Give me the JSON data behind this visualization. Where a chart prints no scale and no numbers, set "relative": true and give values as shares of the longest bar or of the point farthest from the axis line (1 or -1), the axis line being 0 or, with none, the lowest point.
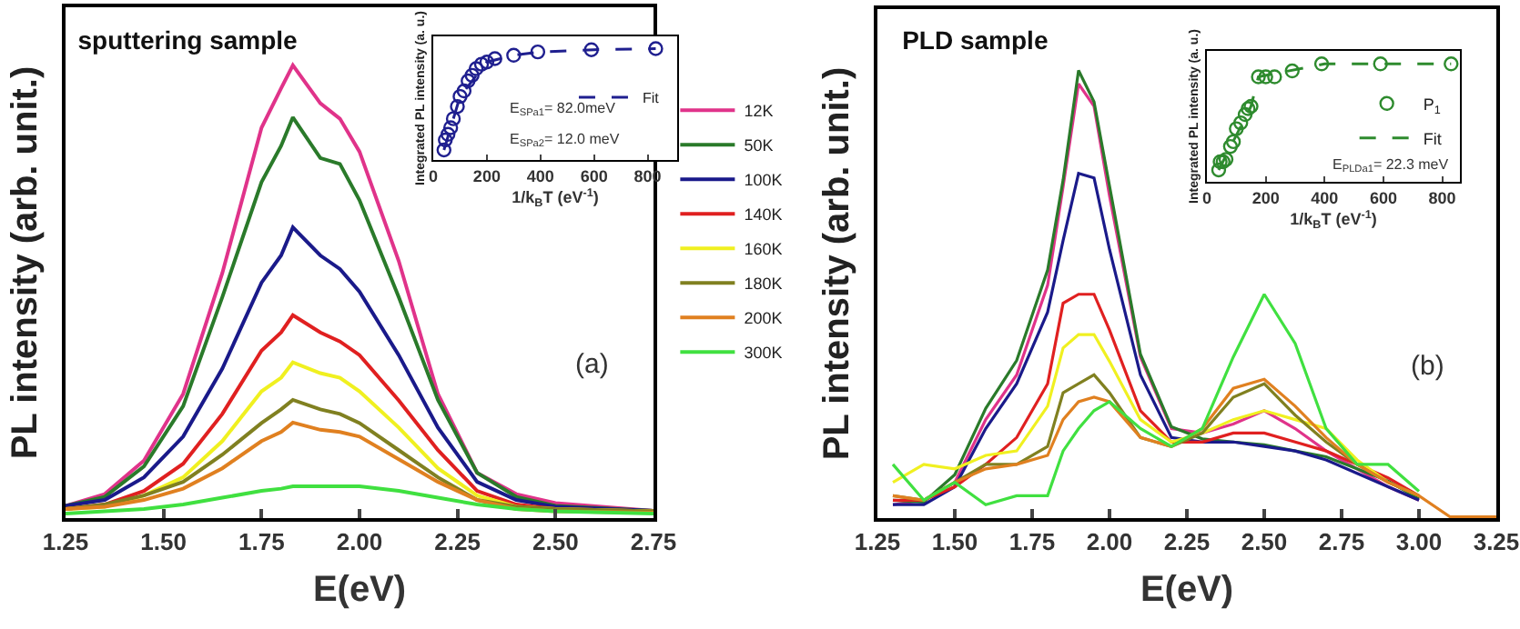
{
  "chart_data": [
    {
      "type": "line",
      "title": "sputtering sample",
      "xlabel": "E(eV)",
      "ylabel": "PL intensity (arb. unit.)",
      "annotations": [
        "(a)"
      ],
      "relative": true,
      "tick_labels": "x",
      "legend": "right",
      "grid": false,
      "x": [
        1.25,
        1.35,
        1.45,
        1.55,
        1.65,
        1.75,
        1.8,
        1.83,
        1.9,
        1.95,
        2.0,
        2.1,
        2.2,
        2.3,
        2.4,
        2.5,
        2.75
      ],
      "xlim": [
        1.25,
        2.75
      ],
      "xticks": [
        {
          "value": 1.25,
          "label": "1.25"
        },
        {
          "value": 1.5,
          "label": "1.50"
        },
        {
          "value": 1.75,
          "label": "1.75"
        },
        {
          "value": 2.0,
          "label": "2.00"
        },
        {
          "value": 2.25,
          "label": "2.25"
        },
        {
          "value": 2.5,
          "label": "2.50"
        },
        {
          "value": 2.75,
          "label": "2.75"
        }
      ],
      "series": [
        {
          "name": "12K",
          "color": "#e0338a",
          "values": [
            0.027,
            0.053,
            0.127,
            0.274,
            0.541,
            0.862,
            0.949,
            1,
            0.916,
            0.882,
            0.809,
            0.568,
            0.274,
            0.1,
            0.053,
            0.033,
            0.016
          ]
        },
        {
          "name": "50K",
          "color": "#2a7a2a",
          "values": [
            0.027,
            0.047,
            0.114,
            0.247,
            0.488,
            0.742,
            0.822,
            0.885,
            0.795,
            0.782,
            0.702,
            0.488,
            0.261,
            0.1,
            0.047,
            0.027,
            0.016
          ]
        },
        {
          "name": "100K",
          "color": "#1a1a8a",
          "values": [
            0.027,
            0.04,
            0.09,
            0.18,
            0.33,
            0.52,
            0.58,
            0.642,
            0.58,
            0.55,
            0.5,
            0.36,
            0.2,
            0.08,
            0.04,
            0.025,
            0.016
          ]
        },
        {
          "name": "140K",
          "color": "#e02020",
          "values": [
            0.02,
            0.03,
            0.06,
            0.12,
            0.23,
            0.37,
            0.41,
            0.448,
            0.41,
            0.39,
            0.36,
            0.26,
            0.15,
            0.06,
            0.03,
            0.02,
            0.015
          ]
        },
        {
          "name": "160K",
          "color": "#f0f020",
          "values": [
            0.02,
            0.025,
            0.05,
            0.09,
            0.17,
            0.28,
            0.31,
            0.344,
            0.32,
            0.31,
            0.28,
            0.2,
            0.11,
            0.05,
            0.025,
            0.02,
            0.015
          ]
        },
        {
          "name": "180K",
          "color": "#808020",
          "values": [
            0.02,
            0.03,
            0.05,
            0.08,
            0.14,
            0.21,
            0.24,
            0.261,
            0.24,
            0.23,
            0.21,
            0.15,
            0.09,
            0.04,
            0.025,
            0.02,
            0.015
          ]
        },
        {
          "name": "200K",
          "color": "#e08020",
          "values": [
            0.02,
            0.025,
            0.04,
            0.065,
            0.11,
            0.17,
            0.19,
            0.211,
            0.195,
            0.19,
            0.18,
            0.13,
            0.08,
            0.04,
            0.02,
            0.015,
            0.012
          ]
        },
        {
          "name": "300K",
          "color": "#40e040",
          "values": [
            0.01,
            0.015,
            0.02,
            0.03,
            0.045,
            0.06,
            0.065,
            0.07,
            0.07,
            0.07,
            0.07,
            0.06,
            0.045,
            0.03,
            0.02,
            0.015,
            0.01
          ]
        }
      ]
    },
    {
      "type": "scatter",
      "xlabel": "1/k$_{B}$T (eV$^{-1}$)",
      "ylabel": "Integrated PL intensity (a. u.)",
      "annotations": [
        "E$_{SPa1}$= 82.0meV",
        "E$_{SPa2}$= 12.0 meV"
      ],
      "relative": true,
      "tick_labels": "x",
      "legend": "right",
      "grid": false,
      "xlim": [
        0,
        910
      ],
      "xticks": [
        0,
        200,
        400,
        600,
        800
      ],
      "series": [
        {
          "color": "#1f1f8f",
          "marker": "circle",
          "x": [
            40,
            45,
            55,
            65,
            75,
            90,
            100,
            115,
            130,
            145,
            160,
            180,
            200,
            230,
            300,
            390,
            590,
            830
          ],
          "values": [
            0.09,
            0.18,
            0.23,
            0.29,
            0.37,
            0.48,
            0.57,
            0.62,
            0.71,
            0.76,
            0.82,
            0.86,
            0.88,
            0.91,
            0.94,
            0.97,
            0.99,
            1
          ]
        },
        {
          "name": "Fit",
          "type": "line",
          "line_style": "dashed",
          "color": "#1f1f8f",
          "x": [
            40,
            100,
            200,
            300,
            400,
            600,
            830
          ],
          "values": [
            0.09,
            0.57,
            0.88,
            0.94,
            0.97,
            0.99,
            1
          ]
        }
      ]
    },
    {
      "type": "line",
      "title": "PLD sample",
      "xlabel": "E(eV)",
      "ylabel": "PL intensity (arb. unit.)",
      "annotations": [
        "(b)"
      ],
      "relative": true,
      "tick_labels": "x",
      "grid": false,
      "x": [
        1.3,
        1.4,
        1.5,
        1.6,
        1.7,
        1.8,
        1.85,
        1.9,
        1.95,
        2.0,
        2.1,
        2.2,
        2.3,
        2.4,
        2.5,
        2.6,
        2.7,
        2.8,
        2.9,
        3.0,
        3.1,
        3.25
      ],
      "xlim": [
        1.25,
        3.25
      ],
      "xticks": [
        {
          "value": 1.25,
          "label": "1.25"
        },
        {
          "value": 1.5,
          "label": "1.50"
        },
        {
          "value": 1.75,
          "label": "1.75"
        },
        {
          "value": 2.0,
          "label": "2.00"
        },
        {
          "value": 2.25,
          "label": "2.25"
        },
        {
          "value": 2.5,
          "label": "2.50"
        },
        {
          "value": 2.75,
          "label": "2.75"
        },
        {
          "value": 3.0,
          "label": "3.00"
        },
        {
          "value": 3.25,
          "label": "3.25"
        }
      ],
      "series": [
        {
          "color": "#e0338a",
          "values": [
            0.03,
            0.04,
            0.08,
            0.22,
            0.32,
            0.52,
            0.74,
            0.97,
            0.92,
            0.72,
            0.36,
            0.2,
            0.19,
            0.21,
            0.24,
            0.2,
            0.15,
            0.11,
            0.07,
            0.04,
            null,
            null
          ]
        },
        {
          "color": "#2a7a2a",
          "values": [
            0.04,
            0.036,
            0.097,
            0.245,
            0.352,
            0.554,
            0.755,
            1,
            0.93,
            0.742,
            0.366,
            0.204,
            0.177,
            0.17,
            0.164,
            0.15,
            0.137,
            0.11,
            0.083,
            0.043,
            null,
            null
          ]
        },
        {
          "color": "#1a1a8a",
          "values": [
            0.03,
            0.03,
            0.07,
            0.2,
            0.3,
            0.46,
            0.62,
            0.77,
            0.76,
            0.6,
            0.32,
            0.18,
            0.17,
            0.17,
            0.16,
            0.15,
            0.13,
            0.1,
            0.07,
            0.04,
            null,
            null
          ]
        },
        {
          "color": "#e02020",
          "values": [
            0.04,
            0.04,
            0.07,
            0.12,
            0.18,
            0.3,
            0.48,
            0.5,
            0.5,
            0.42,
            0.24,
            0.17,
            0.17,
            0.19,
            0.19,
            0.17,
            0.15,
            0.12,
            0.09,
            0.05,
            null,
            null
          ]
        },
        {
          "color": "#f0f020",
          "values": [
            0.08,
            0.12,
            0.11,
            0.14,
            0.15,
            0.25,
            0.38,
            0.41,
            0.41,
            0.35,
            0.22,
            0.17,
            0.19,
            0.22,
            0.24,
            0.22,
            0.2,
            0.13,
            0.08,
            0.05,
            null,
            null
          ]
        },
        {
          "color": "#808020",
          "values": [
            0.05,
            0.04,
            0.08,
            0.12,
            0.12,
            0.16,
            0.28,
            0.3,
            0.32,
            0.28,
            0.18,
            0.16,
            0.19,
            0.27,
            0.3,
            0.23,
            0.17,
            0.12,
            0.08,
            0.05,
            null,
            null
          ]
        },
        {
          "color": "#e08020",
          "values": [
            0.05,
            0.04,
            0.08,
            0.11,
            0.12,
            0.14,
            0.22,
            0.26,
            0.27,
            0.26,
            0.18,
            0.16,
            0.2,
            0.29,
            0.31,
            0.25,
            0.18,
            0.12,
            0.08,
            0.05,
            0.003,
            0.003
          ]
        },
        {
          "color": "#40e040",
          "values": [
            0.12,
            0.04,
            0.08,
            0.03,
            0.05,
            0.05,
            0.15,
            0.2,
            0.24,
            0.26,
            0.2,
            0.16,
            0.2,
            0.36,
            0.5,
            0.39,
            0.2,
            0.12,
            0.12,
            0.06,
            null,
            null
          ]
        }
      ]
    },
    {
      "type": "scatter",
      "xlabel": "1/k$_{B}$T (eV$^{-1}$)",
      "ylabel": "Integrated PL intensity (a. u.)",
      "annotations": [
        "E$_{PLDa1}$= 22.3 meV"
      ],
      "relative": true,
      "tick_labels": "x",
      "legend": "right",
      "grid": false,
      "xlim": [
        0,
        860
      ],
      "xticks": [
        0,
        200,
        400,
        600,
        800
      ],
      "series": [
        {
          "name": "P$_{1}$",
          "color": "#2e8b2e",
          "marker": "circle",
          "x": [
            40,
            45,
            55,
            65,
            80,
            90,
            100,
            115,
            130,
            140,
            150,
            175,
            200,
            230,
            290,
            390,
            590,
            830
          ],
          "values": [
            0.1,
            0.17,
            0.17,
            0.19,
            0.3,
            0.34,
            0.45,
            0.5,
            0.57,
            0.62,
            0.64,
            0.89,
            0.89,
            0.89,
            0.94,
            1,
            1,
            1
          ]
        },
        {
          "name": "Fit",
          "type": "line",
          "line_style": "dashed",
          "color": "#2e8b2e",
          "x": [
            40,
            150,
            175,
            400,
            830
          ],
          "values": [
            0.1,
            0.64,
            0.89,
            1,
            1
          ]
        }
      ]
    }
  ]
}
